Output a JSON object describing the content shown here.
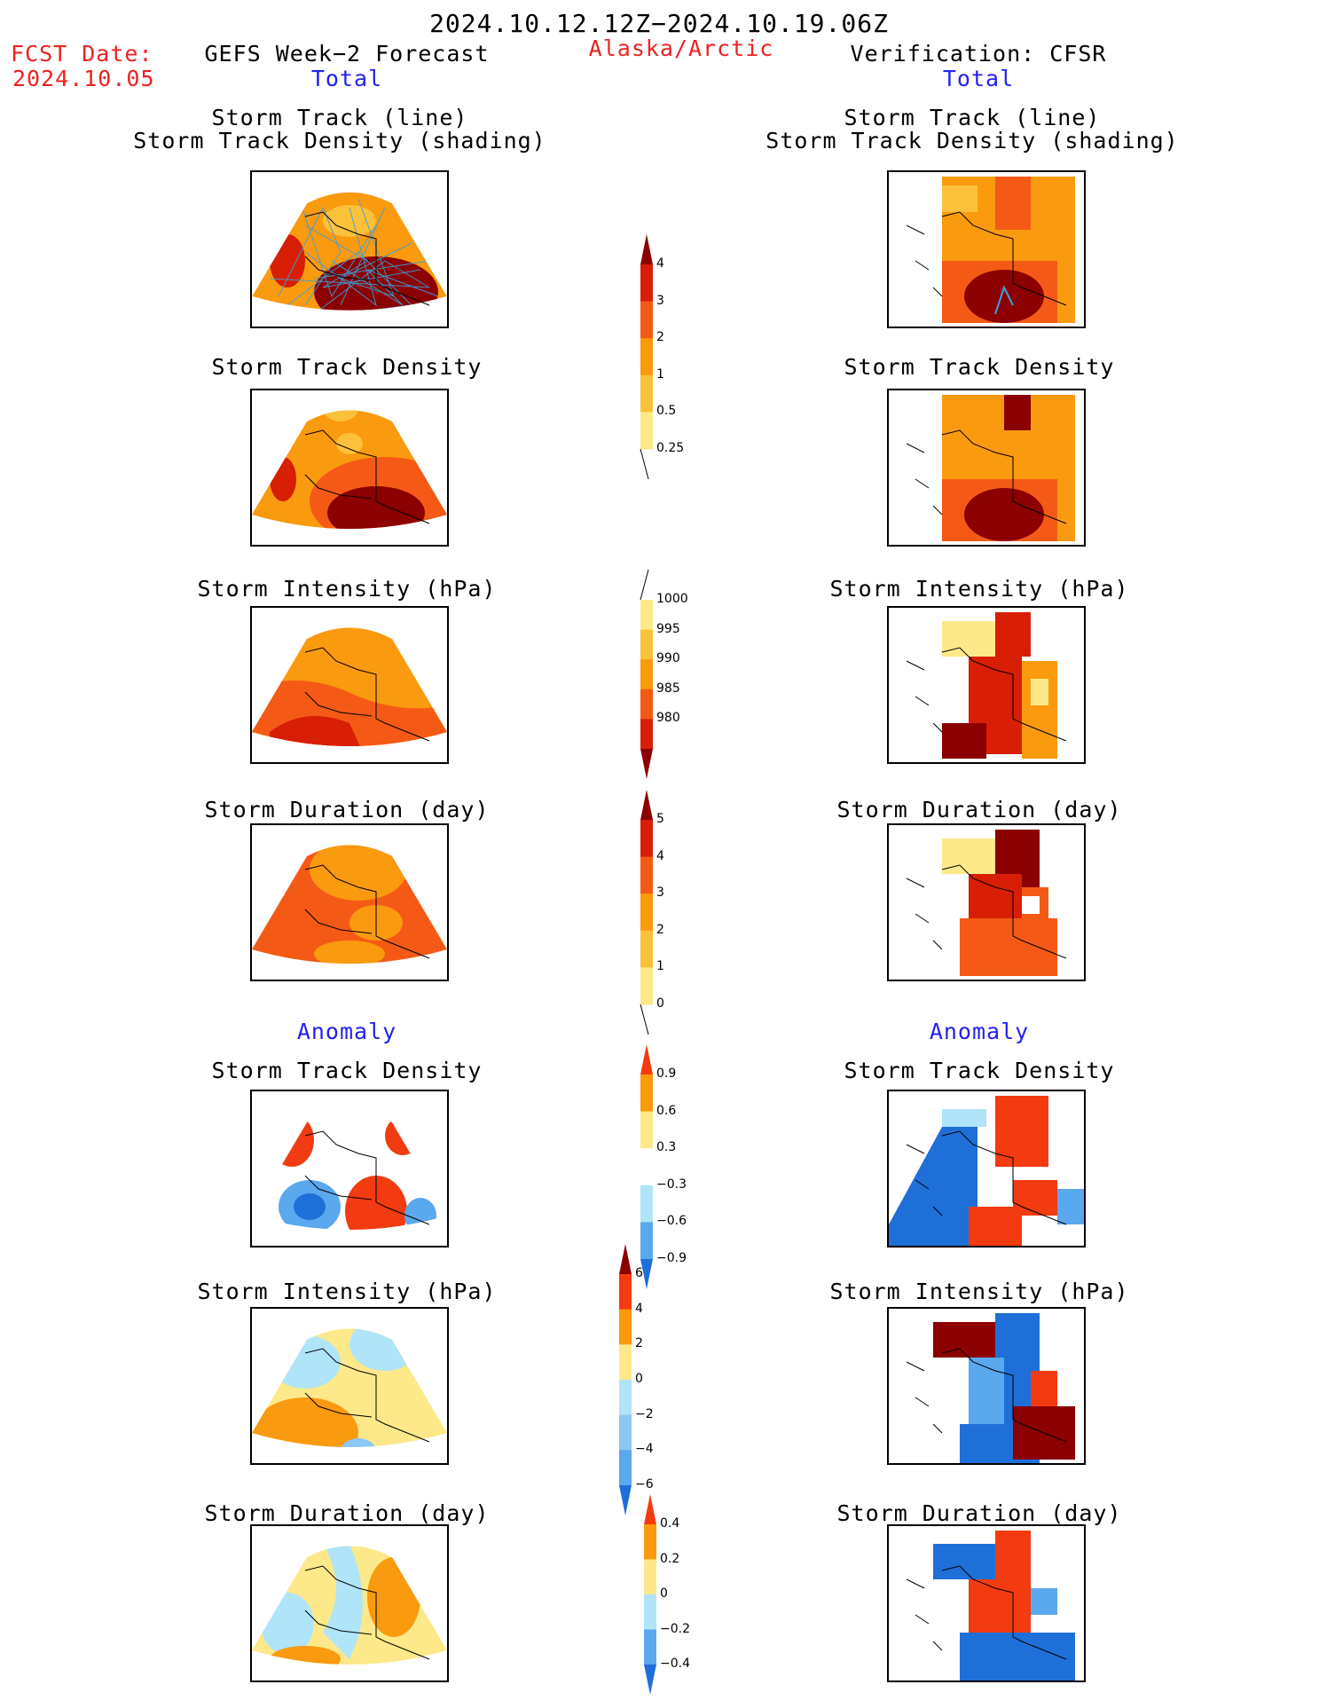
{
  "header": {
    "period": "2024.10.12.12Z−2024.10.19.06Z",
    "fcst_date_label": "FCST Date:",
    "fcst_date_value": "2024.10.05",
    "model_title": "GEFS Week−2 Forecast",
    "region": "Alaska/Arctic",
    "verification_title": "Verification: CFSR"
  },
  "sections": {
    "total": "Total",
    "anomaly": "Anomaly"
  },
  "panel_titles": {
    "track_line": "Storm Track (line)",
    "track_shading": "Storm Track Density (shading)",
    "density": "Storm Track Density",
    "intensity": "Storm Intensity (hPa)",
    "duration": "Storm Duration (day)"
  },
  "colorbars": {
    "density_total": {
      "labels": [
        "4",
        "3",
        "2",
        "1",
        "0.5",
        "0.25"
      ],
      "colors": [
        "#8b0000",
        "#d81e05",
        "#f45a16",
        "#fa9a0e",
        "#fcc13a",
        "#fde98a",
        "#fff8c0"
      ]
    },
    "intensity_total": {
      "labels": [
        "1000",
        "995",
        "990",
        "985",
        "980"
      ],
      "colors": [
        "#fff8c0",
        "#fde98a",
        "#fcc13a",
        "#fa9a0e",
        "#f45a16",
        "#d81e05",
        "#8b0000"
      ]
    },
    "duration_total": {
      "labels": [
        "5",
        "4",
        "3",
        "2",
        "1",
        "0"
      ],
      "colors": [
        "#8b0000",
        "#d81e05",
        "#f45a16",
        "#fa9a0e",
        "#fcc13a",
        "#fde98a",
        "#fff8c0"
      ]
    },
    "density_anom": {
      "labels": [
        "0.9",
        "0.6",
        "0.3",
        "−0.3",
        "−0.6",
        "−0.9"
      ],
      "colors": [
        "#f23b10",
        "#fa9a0e",
        "#fde98a",
        "#ffffff",
        "#b0e4f8",
        "#5aa8ee",
        "#1f6fd8"
      ]
    },
    "intensity_anom": {
      "labels": [
        "6",
        "4",
        "2",
        "0",
        "−2",
        "−4",
        "−6"
      ],
      "colors": [
        "#8b0000",
        "#f23b10",
        "#fa9a0e",
        "#fde98a",
        "#b0e4f8",
        "#8ac8f5",
        "#5aa8ee",
        "#1f6fd8"
      ]
    },
    "duration_anom": {
      "labels": [
        "0.4",
        "0.2",
        "0",
        "−0.2",
        "−0.4"
      ],
      "colors": [
        "#f23b10",
        "#fa9a0e",
        "#fde98a",
        "#b0e4f8",
        "#5aa8ee",
        "#1f6fd8"
      ]
    }
  },
  "colors": {
    "title_red": "#ee2222",
    "title_blue": "#2222ee",
    "track_line": "#3aa0e0"
  }
}
